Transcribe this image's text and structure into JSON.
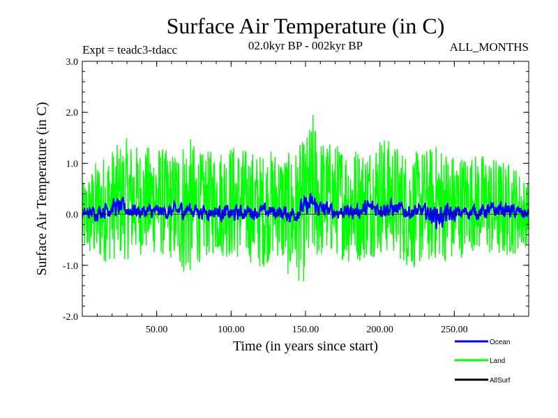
{
  "chart_data": {
    "type": "line",
    "title": "Surface Air Temperature (in C)",
    "subtitle_left": "Expt = teadc3-tdacc",
    "subtitle_center": "02.0kyr BP - 002kyr BP",
    "subtitle_right": "ALL_MONTHS",
    "xlabel": "Time (in years since start)",
    "ylabel": "Surface Air Temperature (in C)",
    "xlim": [
      0,
      300
    ],
    "ylim": [
      -2.0,
      3.0
    ],
    "x_ticks": [
      50,
      100,
      150,
      200,
      250
    ],
    "x_tick_labels": [
      "50.00",
      "100.00",
      "150.00",
      "200.00",
      "250.00"
    ],
    "y_ticks": [
      -2.0,
      -1.0,
      0.0,
      1.0,
      2.0,
      3.0
    ],
    "y_tick_labels": [
      "-2.0",
      "-1.0",
      "0.0",
      "1.0",
      "2.0",
      "3.0"
    ],
    "zero_line": true,
    "series": [
      {
        "name": "Land",
        "color": "#00ff00",
        "envelope": {
          "x": [
            0,
            10,
            20,
            30,
            40,
            50,
            60,
            70,
            80,
            90,
            100,
            110,
            120,
            130,
            140,
            150,
            155,
            160,
            170,
            180,
            190,
            200,
            210,
            220,
            230,
            240,
            250,
            260,
            270,
            280,
            290,
            300
          ],
          "max": [
            0.6,
            1.1,
            1.3,
            1.5,
            1.3,
            1.4,
            1.2,
            1.6,
            1.2,
            1.3,
            1.4,
            1.3,
            1.2,
            1.3,
            1.2,
            1.5,
            2.0,
            1.5,
            1.4,
            1.4,
            1.3,
            1.6,
            1.4,
            1.2,
            1.3,
            1.4,
            1.2,
            1.2,
            1.2,
            1.1,
            1.0,
            0.6
          ],
          "min": [
            -0.8,
            -1.0,
            -0.9,
            -0.9,
            -0.8,
            -0.8,
            -0.9,
            -1.3,
            -0.9,
            -0.8,
            -0.9,
            -0.9,
            -1.1,
            -0.8,
            -1.3,
            -1.35,
            -1.0,
            -0.9,
            -0.8,
            -1.0,
            -0.9,
            -0.8,
            -0.8,
            -1.1,
            -1.0,
            -0.9,
            -1.0,
            -0.7,
            -0.8,
            -0.9,
            -0.8,
            -0.6
          ]
        }
      },
      {
        "name": "Ocean",
        "color": "#0000ff",
        "envelope": {
          "x": [
            0,
            10,
            20,
            30,
            40,
            50,
            60,
            70,
            80,
            90,
            100,
            110,
            120,
            130,
            140,
            150,
            155,
            160,
            170,
            180,
            190,
            200,
            210,
            220,
            230,
            240,
            250,
            260,
            270,
            280,
            290,
            300
          ],
          "max": [
            0.2,
            0.3,
            0.5,
            0.4,
            0.3,
            0.3,
            0.3,
            0.4,
            0.3,
            0.3,
            0.3,
            0.3,
            0.3,
            0.3,
            0.3,
            0.5,
            0.6,
            0.4,
            0.3,
            0.3,
            0.4,
            0.5,
            0.4,
            0.3,
            0.3,
            0.4,
            0.3,
            0.3,
            0.3,
            0.4,
            0.3,
            0.2
          ],
          "min": [
            -0.2,
            -0.2,
            -0.2,
            -0.2,
            -0.2,
            -0.2,
            -0.2,
            -0.2,
            -0.2,
            -0.2,
            -0.3,
            -0.2,
            -0.2,
            -0.2,
            -0.3,
            -0.2,
            -0.2,
            -0.2,
            -0.2,
            -0.2,
            -0.2,
            -0.2,
            -0.2,
            -0.2,
            -0.2,
            -0.5,
            -0.3,
            -0.2,
            -0.2,
            -0.2,
            -0.2,
            -0.2
          ]
        }
      },
      {
        "name": "AllSurf",
        "color": "#000000",
        "envelope": null
      }
    ],
    "legend": [
      {
        "name": "Ocean",
        "color": "#0000ff"
      },
      {
        "name": "Land",
        "color": "#00ff00"
      },
      {
        "name": "AllSurf",
        "color": "#000000"
      }
    ],
    "legend_position": "bottom-right, below plot"
  }
}
